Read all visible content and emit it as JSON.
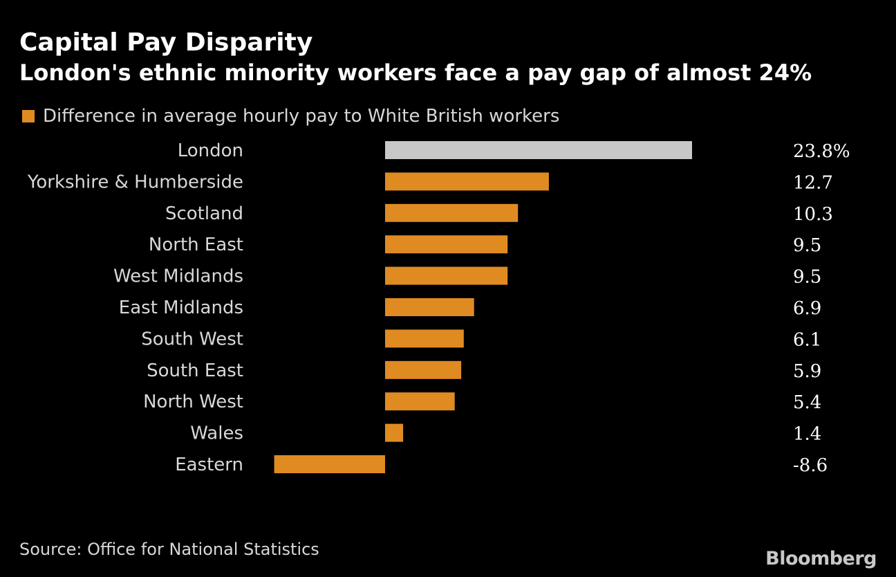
{
  "header": {
    "title": "Capital Pay Disparity",
    "subtitle": "London's ethnic minority workers face a pay gap of almost 24%"
  },
  "legend": {
    "label": "Difference in average hourly pay to White British workers"
  },
  "footer": {
    "source": "Source: Office for National Statistics",
    "brand": "Bloomberg"
  },
  "colors": {
    "background": "#000000",
    "bar": "#e08b22",
    "highlight_bar": "#c8c8c8",
    "label": "#d8d8d8",
    "value": "#ffffff"
  },
  "chart_data": {
    "type": "bar",
    "orientation": "horizontal",
    "title": "Capital Pay Disparity",
    "subtitle": "London's ethnic minority workers face a pay gap of almost 24%",
    "legend": [
      "Difference in average hourly pay to White British workers"
    ],
    "categories": [
      "London",
      "Yorkshire & Humberside",
      "Scotland",
      "North East",
      "West Midlands",
      "East Midlands",
      "South West",
      "South East",
      "North West",
      "Wales",
      "Eastern"
    ],
    "values": [
      23.8,
      12.7,
      10.3,
      9.5,
      9.5,
      6.9,
      6.1,
      5.9,
      5.4,
      1.4,
      -8.6
    ],
    "value_labels": [
      "23.8%",
      "12.7",
      "10.3",
      "9.5",
      "9.5",
      "6.9",
      "6.1",
      "5.9",
      "5.4",
      "1.4",
      "-8.6"
    ],
    "highlight": [
      "London"
    ],
    "xlim": [
      -8.6,
      23.8
    ],
    "xlabel": "",
    "ylabel": "",
    "grid": false
  }
}
